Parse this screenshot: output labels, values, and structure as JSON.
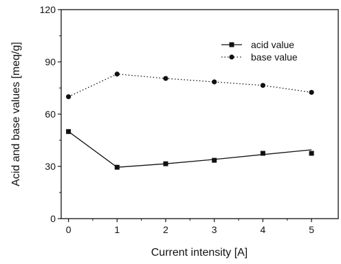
{
  "chart_data": {
    "type": "line",
    "title": "",
    "xlabel": "Current intensity [A]",
    "ylabel": "Acid and base values [meq/g]",
    "xlim": [
      -0.15,
      5.55
    ],
    "ylim": [
      0,
      120
    ],
    "xticks": [
      0,
      1,
      2,
      3,
      4,
      5
    ],
    "yticks": [
      0,
      30,
      60,
      90,
      120
    ],
    "grid": false,
    "legend_position": "top-right",
    "series": [
      {
        "name": "acid value",
        "marker": "square",
        "line_style": "solid",
        "color": "#111111",
        "x": [
          0,
          1,
          2,
          3,
          4,
          5
        ],
        "y": [
          50,
          29.5,
          31.5,
          33.5,
          37.5,
          37.5
        ],
        "fit": {
          "x": [
            0,
            1,
            2,
            3,
            4,
            5
          ],
          "y": [
            50,
            29.5,
            31.5,
            34,
            36.8,
            39.5
          ]
        }
      },
      {
        "name": "base value",
        "marker": "circle",
        "line_style": "dotted",
        "color": "#111111",
        "x": [
          0,
          1,
          2,
          3,
          4,
          5
        ],
        "y": [
          70,
          83,
          80.5,
          78.5,
          76.5,
          72.5
        ]
      }
    ]
  }
}
